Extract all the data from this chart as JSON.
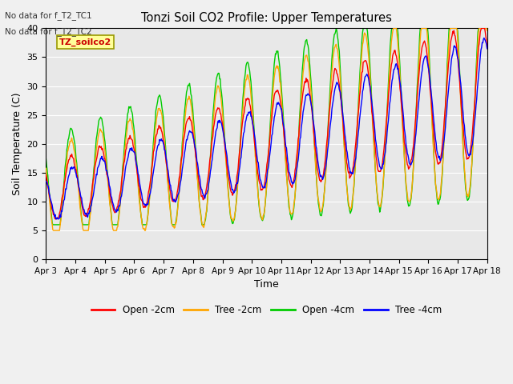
{
  "title": "Tonzi Soil CO2 Profile: Upper Temperatures",
  "ylabel": "Soil Temperature (C)",
  "xlabel": "Time",
  "annotations": [
    "No data for f_T2_TC1",
    "No data for f_T2_TC2"
  ],
  "inset_label": "TZ_soilco2",
  "n_days": 15,
  "ylim": [
    0,
    40
  ],
  "yticks": [
    0,
    5,
    10,
    15,
    20,
    25,
    30,
    35,
    40
  ],
  "xtick_labels": [
    "Apr 3",
    "Apr 4",
    "Apr 5",
    "Apr 6",
    "Apr 7",
    "Apr 8",
    "Apr 9",
    "Apr 10",
    "Apr 11",
    "Apr 12",
    "Apr 13",
    "Apr 14",
    "Apr 15",
    "Apr 16",
    "Apr 17",
    "Apr 18"
  ],
  "colors": {
    "open_2cm": "#ff0000",
    "tree_2cm": "#ffa500",
    "open_4cm": "#00cc00",
    "tree_4cm": "#0000ff"
  },
  "legend_labels": [
    "Open -2cm",
    "Tree -2cm",
    "Open -4cm",
    "Tree -4cm"
  ],
  "bg_color": "#e8e8e8",
  "grid_color": "#ffffff",
  "linewidth": 1.0,
  "fig_bg": "#f0f0f0"
}
